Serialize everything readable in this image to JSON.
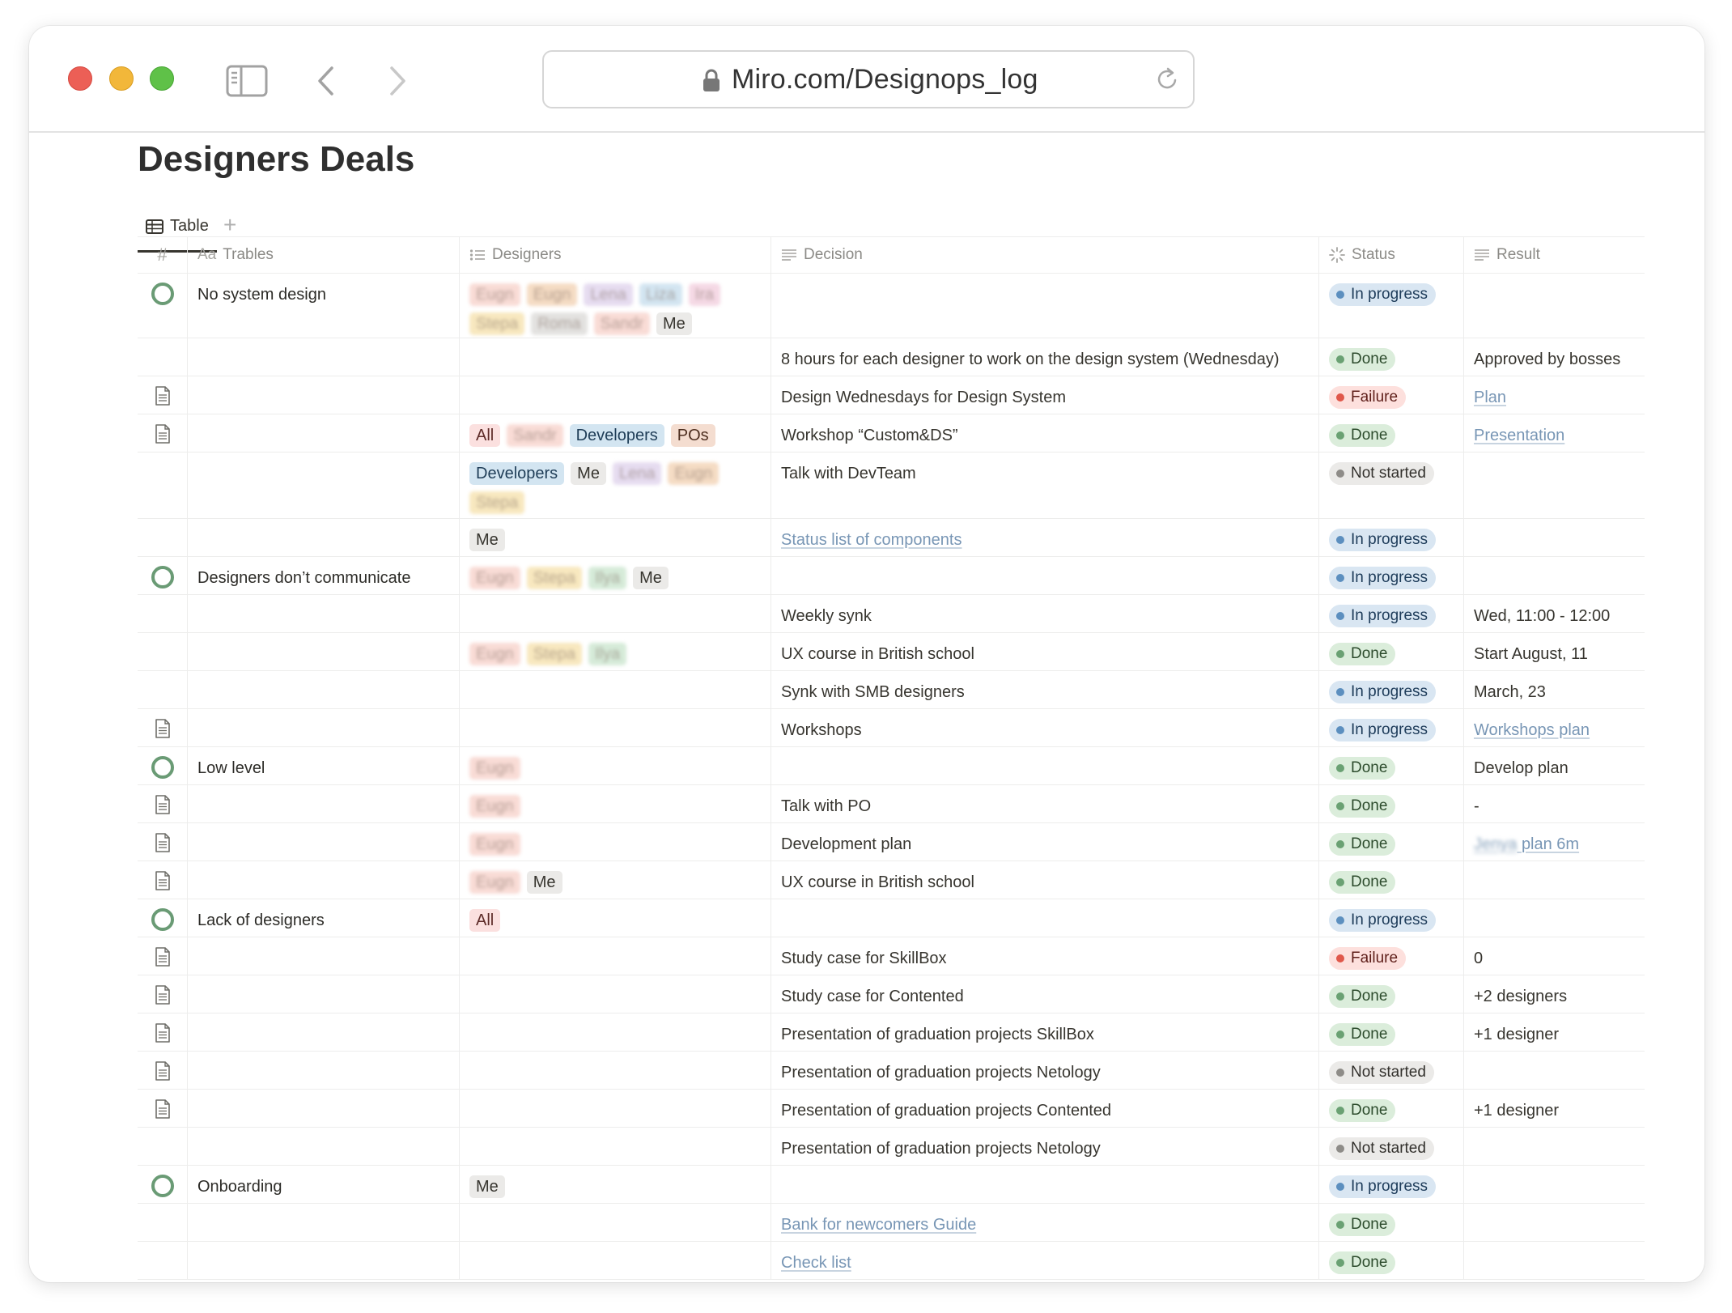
{
  "browser": {
    "url": "Miro.com/Designops_log"
  },
  "page": {
    "title": "Designers Deals",
    "view_tab": "Table",
    "add_view": "+"
  },
  "columns": {
    "num": "#",
    "trables": "Trables",
    "trables_prefix": "Aa",
    "designers": "Designers",
    "decision": "Decision",
    "status": "Status",
    "result": "Result"
  },
  "rows": [
    {
      "icon": "ring",
      "trable": "No system design",
      "tags": [
        [
          "Eugn",
          "t-red",
          1
        ],
        [
          "Eugn",
          "t-orange",
          1
        ],
        [
          "Lena",
          "t-purple",
          1
        ],
        [
          "Liza",
          "t-blue",
          1
        ],
        [
          "Ira",
          "t-pink",
          1
        ],
        [
          "Stepa",
          "t-yellow",
          1
        ],
        [
          "Roma",
          "t-gray",
          1
        ],
        [
          "Sandr",
          "t-red",
          1
        ],
        [
          "Me",
          "t-me",
          0
        ]
      ],
      "decision": "",
      "status": "In progress",
      "result": "",
      "h": 80
    },
    {
      "icon": "",
      "trable": "",
      "tags": [],
      "decision": "8 hours for each designer to work on the design system (Wednesday)",
      "status": "Done",
      "result": "Approved by bosses",
      "h": 47
    },
    {
      "icon": "doc",
      "trable": "",
      "tags": [],
      "decision": "Design Wednesdays for Design System",
      "status": "Failure",
      "result": "Plan",
      "result_link": true,
      "h": 47
    },
    {
      "icon": "doc",
      "trable": "",
      "tags": [
        [
          "All",
          "t-all",
          0
        ],
        [
          "Sandr",
          "t-red",
          1
        ],
        [
          "Developers",
          "t-dev",
          0
        ],
        [
          "POs",
          "t-pos",
          0
        ]
      ],
      "decision": "Workshop “Custom&DS”",
      "status": "Done",
      "result": "Presentation",
      "result_link": true,
      "h": 47
    },
    {
      "icon": "",
      "trable": "",
      "tags": [
        [
          "Developers",
          "t-dev",
          0
        ],
        [
          "Me",
          "t-me",
          0
        ],
        [
          "Lena",
          "t-purple",
          1
        ],
        [
          "Eugn",
          "t-orange",
          1
        ],
        [
          "Stepa",
          "t-yellow",
          1
        ]
      ],
      "decision": "Talk with DevTeam",
      "status": "Not started",
      "result": "",
      "h": 82
    },
    {
      "icon": "",
      "trable": "",
      "tags": [
        [
          "Me",
          "t-me",
          0
        ]
      ],
      "decision": "Status list of components",
      "decision_link": true,
      "status": "In progress",
      "result": "",
      "h": 47
    },
    {
      "icon": "ring",
      "trable": "Designers don’t communicate",
      "tags": [
        [
          "Eugn",
          "t-red",
          1
        ],
        [
          "Stepa",
          "t-yellow",
          1
        ],
        [
          "Ilya",
          "t-green",
          1
        ],
        [
          "Me",
          "t-me",
          0
        ]
      ],
      "decision": "",
      "status": "In progress",
      "result": "",
      "h": 47
    },
    {
      "icon": "",
      "trable": "",
      "tags": [],
      "decision": "Weekly synk",
      "status": "In progress",
      "result": "Wed, 11:00 - 12:00",
      "h": 47
    },
    {
      "icon": "",
      "trable": "",
      "tags": [
        [
          "Eugn",
          "t-red",
          1
        ],
        [
          "Stepa",
          "t-yellow",
          1
        ],
        [
          "Ilya",
          "t-green",
          1
        ]
      ],
      "decision": "UX course in British school",
      "status": "Done",
      "result": "Start August, 11",
      "h": 47
    },
    {
      "icon": "",
      "trable": "",
      "tags": [],
      "decision": "Synk with SMB designers",
      "status": "In progress",
      "result": "March, 23",
      "h": 47
    },
    {
      "icon": "doc",
      "trable": "",
      "tags": [],
      "decision": "Workshops",
      "status": "In progress",
      "result": "Workshops plan",
      "result_link": true,
      "h": 47
    },
    {
      "icon": "ring",
      "trable": "Low level",
      "tags": [
        [
          "Eugn",
          "t-red",
          1
        ]
      ],
      "decision": "",
      "status": "Done",
      "result": "Develop plan",
      "h": 47
    },
    {
      "icon": "doc",
      "trable": "",
      "tags": [
        [
          "Eugn",
          "t-red",
          1
        ]
      ],
      "decision": "Talk with PO",
      "status": "Done",
      "result": "-",
      "h": 47
    },
    {
      "icon": "doc",
      "trable": "",
      "tags": [
        [
          "Eugn",
          "t-red",
          1
        ]
      ],
      "decision": "Development plan",
      "status": "Done",
      "result": "plan 6m",
      "result_link": true,
      "result_blur": "Jenya",
      "h": 47
    },
    {
      "icon": "doc",
      "trable": "",
      "tags": [
        [
          "Eugn",
          "t-red",
          1
        ],
        [
          "Me",
          "t-me",
          0
        ]
      ],
      "decision": "UX course in British school",
      "status": "Done",
      "result": "",
      "h": 47
    },
    {
      "icon": "ring",
      "trable": "Lack of designers",
      "tags": [
        [
          "All",
          "t-all",
          0
        ]
      ],
      "decision": "",
      "status": "In progress",
      "result": "",
      "h": 47
    },
    {
      "icon": "doc",
      "trable": "",
      "tags": [],
      "decision": "Study case for SkillBox",
      "status": "Failure",
      "result": "0",
      "h": 47
    },
    {
      "icon": "doc",
      "trable": "",
      "tags": [],
      "decision": "Study case for Contented",
      "status": "Done",
      "result": "+2 designers",
      "h": 47
    },
    {
      "icon": "doc",
      "trable": "",
      "tags": [],
      "decision": "Presentation of graduation projects SkillBox",
      "status": "Done",
      "result": "+1 designer",
      "h": 47
    },
    {
      "icon": "doc",
      "trable": "",
      "tags": [],
      "decision": "Presentation of graduation projects Netology",
      "status": "Not started",
      "result": "",
      "h": 47
    },
    {
      "icon": "doc",
      "trable": "",
      "tags": [],
      "decision": "Presentation of graduation projects Contented",
      "status": "Done",
      "result": "+1 designer",
      "h": 47
    },
    {
      "icon": "",
      "trable": "",
      "tags": [],
      "decision": "Presentation of graduation projects Netology",
      "status": "Not started",
      "result": "",
      "h": 47
    },
    {
      "icon": "ring",
      "trable": "Onboarding",
      "tags": [
        [
          "Me",
          "t-me",
          0
        ]
      ],
      "decision": "",
      "status": "In progress",
      "result": "",
      "h": 47
    },
    {
      "icon": "",
      "trable": "",
      "tags": [],
      "decision": "Bank for newcomers Guide",
      "decision_link": true,
      "status": "Done",
      "result": "",
      "h": 47
    },
    {
      "icon": "",
      "trable": "",
      "tags": [],
      "decision": "Check list",
      "decision_link": true,
      "status": "Done",
      "result": "",
      "h": 47
    }
  ]
}
